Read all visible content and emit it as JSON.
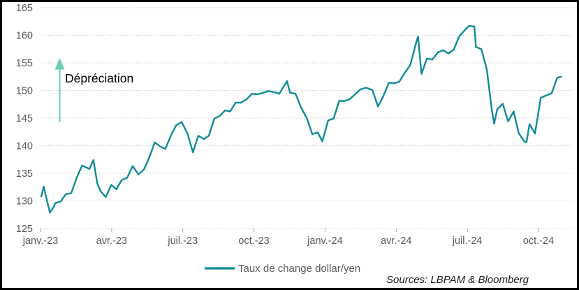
{
  "annotation": {
    "text": "Dépréciation"
  },
  "legend": {
    "label": "Taux de change dollar/yen"
  },
  "sources": {
    "text": "Sources: LBPAM & Bloomberg"
  },
  "colors": {
    "series_line": "#0E8C96",
    "arrow": "#6CCDB2",
    "gridline": "#C9C9C9",
    "axis_tick": "#A6A6A6",
    "tick_label": "#595959",
    "legend_text": "#595959",
    "annotation_text": "#000000",
    "sources_text": "#1A1A1A",
    "border": "#000000",
    "background": "#FFFFFF"
  },
  "chart_data": {
    "type": "line",
    "title": "",
    "xlabel": "",
    "ylabel": "",
    "ylim": [
      125,
      165
    ],
    "y_ticks": [
      125,
      130,
      135,
      140,
      145,
      150,
      155,
      160,
      165
    ],
    "x_ticks": [
      {
        "label": "janv.-23",
        "date": "2023-01-01"
      },
      {
        "label": "avr.-23",
        "date": "2023-04-01"
      },
      {
        "label": "juil.-23",
        "date": "2023-07-01"
      },
      {
        "label": "oct.-23",
        "date": "2023-10-01"
      },
      {
        "label": "janv.-24",
        "date": "2024-01-01"
      },
      {
        "label": "avr.-24",
        "date": "2024-04-01"
      },
      {
        "label": "juil.-24",
        "date": "2024-07-01"
      },
      {
        "label": "oct.-24",
        "date": "2024-10-01"
      }
    ],
    "grid": true,
    "legend_position": "bottom-center",
    "series": [
      {
        "name": "Taux de change dollar/yen",
        "color": "#0E8C96",
        "points": [
          [
            "2023-01-02",
            130.8
          ],
          [
            "2023-01-05",
            132.6
          ],
          [
            "2023-01-13",
            127.9
          ],
          [
            "2023-01-18",
            128.9
          ],
          [
            "2023-01-20",
            129.6
          ],
          [
            "2023-01-27",
            129.9
          ],
          [
            "2023-02-03",
            131.2
          ],
          [
            "2023-02-10",
            131.4
          ],
          [
            "2023-02-17",
            134.2
          ],
          [
            "2023-02-24",
            136.4
          ],
          [
            "2023-03-03",
            135.8
          ],
          [
            "2023-03-08",
            137.4
          ],
          [
            "2023-03-13",
            133.2
          ],
          [
            "2023-03-17",
            131.8
          ],
          [
            "2023-03-24",
            130.7
          ],
          [
            "2023-03-31",
            132.9
          ],
          [
            "2023-04-07",
            132.1
          ],
          [
            "2023-04-14",
            133.8
          ],
          [
            "2023-04-21",
            134.2
          ],
          [
            "2023-04-28",
            136.3
          ],
          [
            "2023-05-05",
            134.8
          ],
          [
            "2023-05-12",
            135.7
          ],
          [
            "2023-05-19",
            137.9
          ],
          [
            "2023-05-26",
            140.6
          ],
          [
            "2023-06-02",
            139.9
          ],
          [
            "2023-06-09",
            139.4
          ],
          [
            "2023-06-16",
            141.8
          ],
          [
            "2023-06-23",
            143.7
          ],
          [
            "2023-06-30",
            144.3
          ],
          [
            "2023-07-07",
            142.2
          ],
          [
            "2023-07-14",
            138.8
          ],
          [
            "2023-07-21",
            141.8
          ],
          [
            "2023-07-28",
            141.2
          ],
          [
            "2023-08-04",
            141.8
          ],
          [
            "2023-08-11",
            144.9
          ],
          [
            "2023-08-18",
            145.4
          ],
          [
            "2023-08-25",
            146.4
          ],
          [
            "2023-09-01",
            146.2
          ],
          [
            "2023-09-08",
            147.8
          ],
          [
            "2023-09-15",
            147.8
          ],
          [
            "2023-09-22",
            148.4
          ],
          [
            "2023-09-29",
            149.4
          ],
          [
            "2023-10-06",
            149.3
          ],
          [
            "2023-10-13",
            149.6
          ],
          [
            "2023-10-20",
            149.9
          ],
          [
            "2023-10-27",
            149.7
          ],
          [
            "2023-11-03",
            149.4
          ],
          [
            "2023-11-13",
            151.7
          ],
          [
            "2023-11-17",
            149.6
          ],
          [
            "2023-11-24",
            149.4
          ],
          [
            "2023-12-01",
            146.8
          ],
          [
            "2023-12-08",
            145.0
          ],
          [
            "2023-12-15",
            142.1
          ],
          [
            "2023-12-22",
            142.4
          ],
          [
            "2023-12-28",
            140.8
          ],
          [
            "2024-01-05",
            144.6
          ],
          [
            "2024-01-12",
            144.9
          ],
          [
            "2024-01-19",
            148.1
          ],
          [
            "2024-01-26",
            148.1
          ],
          [
            "2024-02-02",
            148.4
          ],
          [
            "2024-02-09",
            149.3
          ],
          [
            "2024-02-16",
            150.2
          ],
          [
            "2024-02-23",
            150.5
          ],
          [
            "2024-03-01",
            150.1
          ],
          [
            "2024-03-08",
            147.1
          ],
          [
            "2024-03-15",
            149.0
          ],
          [
            "2024-03-22",
            151.4
          ],
          [
            "2024-03-29",
            151.3
          ],
          [
            "2024-04-05",
            151.6
          ],
          [
            "2024-04-12",
            153.2
          ],
          [
            "2024-04-19",
            154.6
          ],
          [
            "2024-04-26",
            158.3
          ],
          [
            "2024-04-29",
            159.8
          ],
          [
            "2024-05-03",
            153.0
          ],
          [
            "2024-05-10",
            155.8
          ],
          [
            "2024-05-17",
            155.6
          ],
          [
            "2024-05-24",
            156.9
          ],
          [
            "2024-05-31",
            157.3
          ],
          [
            "2024-06-07",
            156.7
          ],
          [
            "2024-06-14",
            157.4
          ],
          [
            "2024-06-21",
            159.8
          ],
          [
            "2024-06-28",
            160.9
          ],
          [
            "2024-07-03",
            161.7
          ],
          [
            "2024-07-10",
            161.6
          ],
          [
            "2024-07-12",
            157.9
          ],
          [
            "2024-07-19",
            157.5
          ],
          [
            "2024-07-26",
            153.8
          ],
          [
            "2024-08-02",
            146.5
          ],
          [
            "2024-08-05",
            144.0
          ],
          [
            "2024-08-09",
            146.6
          ],
          [
            "2024-08-16",
            147.6
          ],
          [
            "2024-08-23",
            144.4
          ],
          [
            "2024-08-30",
            146.2
          ],
          [
            "2024-09-06",
            142.3
          ],
          [
            "2024-09-13",
            140.8
          ],
          [
            "2024-09-16",
            140.6
          ],
          [
            "2024-09-20",
            143.9
          ],
          [
            "2024-09-27",
            142.2
          ],
          [
            "2024-10-04",
            148.7
          ],
          [
            "2024-10-11",
            149.1
          ],
          [
            "2024-10-18",
            149.5
          ],
          [
            "2024-10-25",
            152.3
          ],
          [
            "2024-10-30",
            152.5
          ]
        ]
      }
    ]
  }
}
